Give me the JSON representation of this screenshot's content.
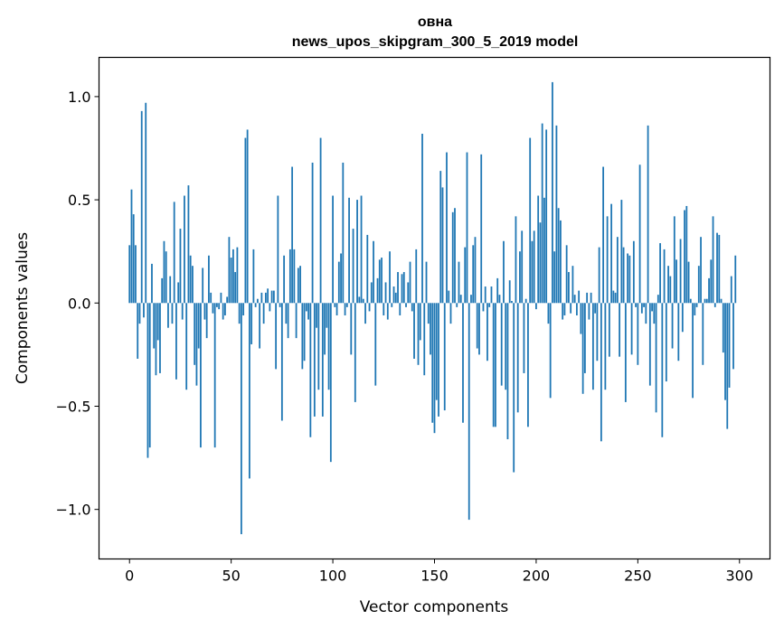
{
  "chart_data": {
    "type": "bar",
    "title": "овна",
    "subtitle": "news_upos_skipgram_300_5_2019 model",
    "xlabel": "Vector components",
    "ylabel": "Components values",
    "xlim": [
      -15,
      315
    ],
    "ylim": [
      -1.24,
      1.19
    ],
    "xticks": [
      0,
      50,
      100,
      150,
      200,
      250,
      300
    ],
    "xtick_labels": [
      "0",
      "50",
      "100",
      "150",
      "200",
      "250",
      "300"
    ],
    "yticks": [
      -1.0,
      -0.5,
      0.0,
      0.5,
      1.0
    ],
    "ytick_labels": [
      "−1.0",
      "−0.5",
      "0.0",
      "0.5",
      "1.0"
    ],
    "grid": false,
    "bar_color": "#1f77b4",
    "values": [
      0.28,
      0.55,
      0.43,
      0.28,
      -0.27,
      -0.1,
      0.93,
      -0.07,
      0.97,
      -0.75,
      -0.7,
      0.19,
      -0.22,
      -0.35,
      -0.18,
      -0.34,
      0.12,
      0.3,
      0.25,
      -0.12,
      0.13,
      -0.1,
      0.49,
      -0.37,
      0.1,
      0.36,
      -0.08,
      0.52,
      -0.42,
      0.57,
      0.23,
      0.18,
      -0.3,
      -0.4,
      -0.22,
      -0.7,
      0.17,
      -0.08,
      -0.17,
      0.23,
      0.05,
      -0.05,
      -0.7,
      -0.02,
      -0.03,
      0.05,
      -0.08,
      -0.06,
      0.03,
      0.32,
      0.22,
      0.26,
      0.15,
      0.27,
      -0.1,
      -1.12,
      -0.06,
      0.8,
      0.84,
      -0.85,
      -0.2,
      0.26,
      -0.02,
      0.02,
      -0.22,
      0.05,
      -0.1,
      0.05,
      0.07,
      -0.04,
      0.06,
      0.06,
      -0.32,
      0.52,
      -0.02,
      -0.57,
      0.23,
      -0.1,
      -0.17,
      0.26,
      0.66,
      0.26,
      -0.17,
      0.17,
      0.18,
      -0.32,
      -0.28,
      -0.04,
      -0.08,
      -0.65,
      0.68,
      -0.55,
      -0.12,
      -0.42,
      0.8,
      -0.55,
      -0.25,
      -0.12,
      -0.42,
      -0.77,
      0.52,
      -0.02,
      -0.06,
      0.2,
      0.24,
      0.68,
      -0.06,
      -0.02,
      0.51,
      -0.25,
      0.36,
      -0.48,
      0.5,
      0.03,
      0.52,
      0.02,
      -0.1,
      0.33,
      -0.04,
      0.1,
      0.3,
      -0.4,
      0.12,
      0.21,
      0.22,
      -0.06,
      0.1,
      -0.08,
      0.25,
      -0.02,
      0.08,
      0.05,
      0.15,
      -0.06,
      0.14,
      0.15,
      -0.02,
      0.1,
      0.2,
      -0.04,
      -0.27,
      0.26,
      -0.3,
      -0.18,
      0.82,
      -0.35,
      0.2,
      -0.1,
      -0.25,
      -0.58,
      -0.63,
      -0.47,
      -0.55,
      0.64,
      0.56,
      -0.52,
      0.73,
      0.06,
      -0.1,
      0.44,
      0.46,
      -0.02,
      0.2,
      0.04,
      -0.58,
      0.27,
      0.73,
      -1.05,
      0.04,
      0.28,
      0.32,
      -0.22,
      -0.25,
      0.72,
      -0.04,
      0.08,
      -0.28,
      -0.02,
      0.08,
      -0.6,
      -0.6,
      0.12,
      0.04,
      -0.4,
      0.3,
      -0.42,
      -0.66,
      0.11,
      0.01,
      -0.82,
      0.42,
      -0.53,
      0.25,
      0.35,
      -0.34,
      0.02,
      -0.6,
      0.8,
      0.3,
      0.35,
      -0.03,
      0.52,
      0.39,
      0.87,
      0.51,
      0.84,
      -0.1,
      -0.46,
      1.07,
      0.25,
      0.86,
      0.46,
      0.4,
      -0.08,
      -0.06,
      0.28,
      0.15,
      -0.05,
      0.18,
      0.04,
      -0.06,
      0.06,
      -0.15,
      -0.44,
      -0.34,
      0.05,
      -0.08,
      0.05,
      -0.42,
      -0.05,
      -0.28,
      0.27,
      -0.67,
      0.66,
      -0.42,
      0.42,
      -0.26,
      0.48,
      0.06,
      0.05,
      0.32,
      -0.26,
      0.5,
      0.27,
      -0.48,
      0.24,
      0.23,
      -0.25,
      0.3,
      -0.02,
      -0.3,
      0.67,
      -0.05,
      -0.02,
      -0.1,
      0.86,
      -0.4,
      -0.04,
      -0.1,
      -0.53,
      0.04,
      0.29,
      -0.65,
      0.26,
      -0.38,
      0.18,
      0.13,
      -0.22,
      0.42,
      0.21,
      -0.28,
      0.31,
      -0.14,
      0.45,
      0.47,
      0.2,
      0.02,
      -0.46,
      -0.06,
      -0.02,
      0.18,
      0.32,
      -0.3,
      0.02,
      0.02,
      0.12,
      0.21,
      0.42,
      -0.02,
      0.34,
      0.33,
      0.02,
      -0.24,
      -0.47,
      -0.61,
      -0.41,
      0.13,
      -0.32,
      0.23
    ]
  }
}
